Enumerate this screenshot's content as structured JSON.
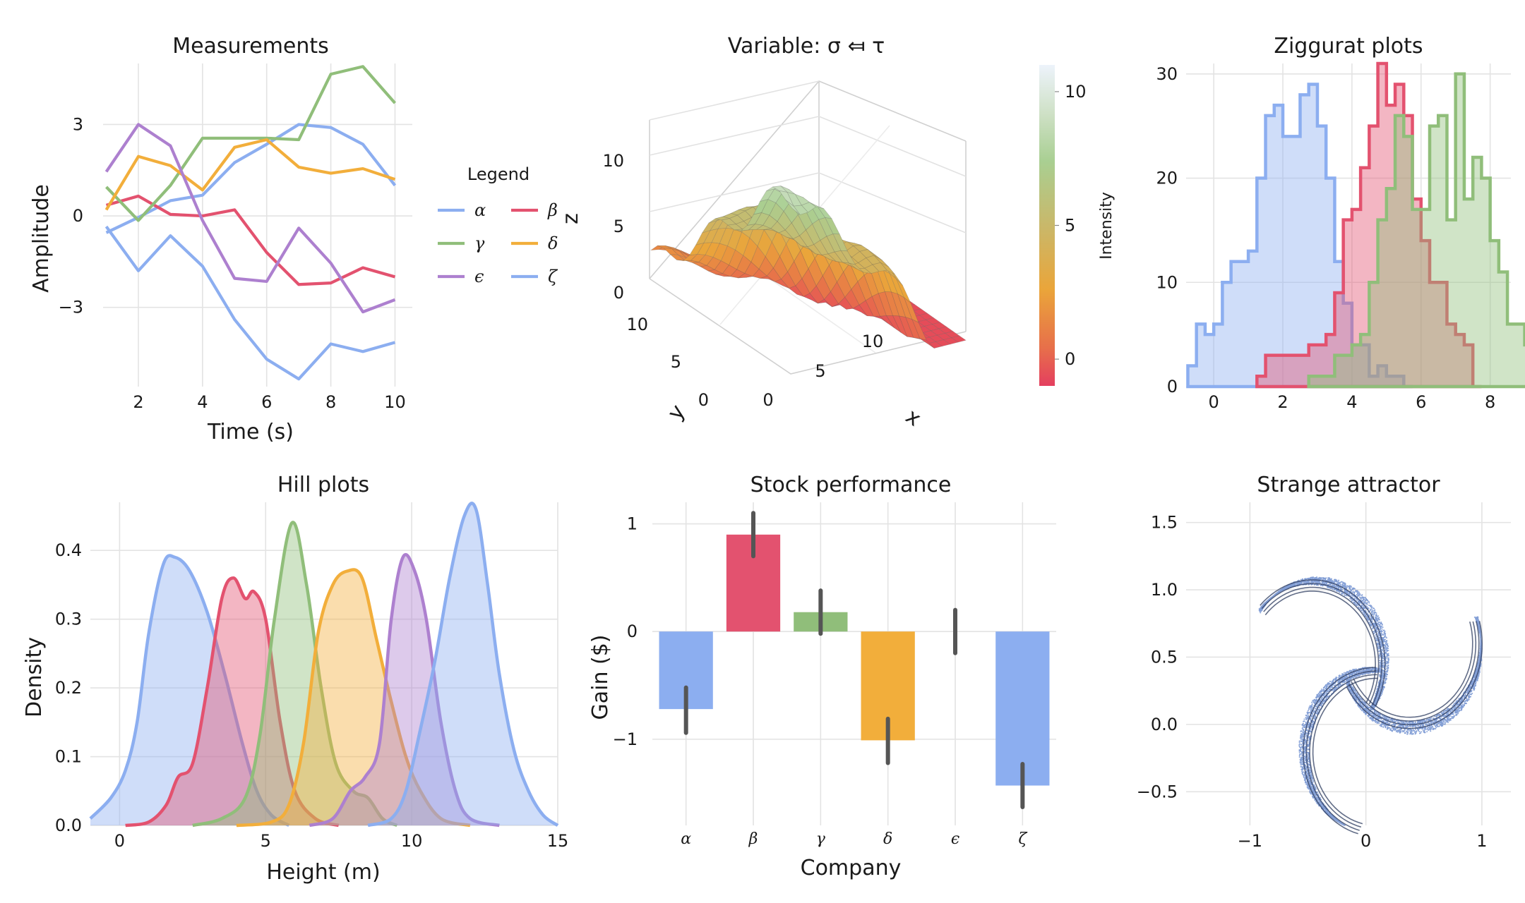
{
  "chart_data": [
    {
      "id": "measurements",
      "type": "line",
      "title": "Measurements",
      "xlabel": "Time (s)",
      "ylabel": "Amplitude",
      "xlim": [
        0.9,
        10.1
      ],
      "ylim": [
        -5.6,
        5.0
      ],
      "xticks": [
        2,
        4,
        6,
        8,
        10
      ],
      "yticks": [
        3,
        0,
        -3
      ],
      "ytick_labels": [
        "3",
        "0",
        "−3"
      ],
      "grid": true,
      "legend": {
        "title": "Legend",
        "placement": "right",
        "columns": 2
      },
      "x": [
        1,
        2,
        3,
        4,
        5,
        6,
        7,
        8,
        9,
        10
      ],
      "series": [
        {
          "name": "α",
          "color": "#8caef0",
          "values": [
            -0.55,
            -0.05,
            0.5,
            0.68,
            1.75,
            2.35,
            3.0,
            2.9,
            2.35,
            1.0
          ]
        },
        {
          "name": "β",
          "color": "#e3526f",
          "values": [
            0.35,
            0.65,
            0.05,
            0.0,
            0.2,
            -1.2,
            -2.25,
            -2.2,
            -1.7,
            -2.0
          ]
        },
        {
          "name": "γ",
          "color": "#90be7a",
          "values": [
            0.95,
            -0.15,
            1.0,
            2.55,
            2.55,
            2.55,
            2.5,
            4.65,
            4.9,
            3.7
          ]
        },
        {
          "name": "δ",
          "color": "#f2ae3b",
          "values": [
            0.2,
            1.95,
            1.65,
            0.85,
            2.25,
            2.5,
            1.6,
            1.4,
            1.55,
            1.2
          ]
        },
        {
          "name": "ϵ",
          "color": "#ad80cf",
          "values": [
            1.45,
            3.0,
            2.3,
            -0.15,
            -2.05,
            -2.15,
            -0.4,
            -1.55,
            -3.15,
            -2.75
          ]
        },
        {
          "name": "ζ",
          "color": "#8caef0",
          "values": [
            -0.35,
            -1.8,
            -0.65,
            -1.65,
            -3.4,
            -4.7,
            -5.35,
            -4.2,
            -4.45,
            -4.15
          ]
        }
      ]
    },
    {
      "id": "surface",
      "type": "surface",
      "title": "Variable: σ ⤆ τ",
      "xlabel": "x",
      "ylabel": "y",
      "zlabel": "z",
      "xlim": [
        0,
        10
      ],
      "ylim": [
        0,
        10
      ],
      "zlim": [
        -1,
        11
      ],
      "xticks": [
        0,
        5,
        10
      ],
      "yticks": [
        0,
        5,
        10
      ],
      "zticks": [
        0,
        5,
        10
      ],
      "colorbar": {
        "label": "Intensity",
        "range": [
          -1,
          11
        ],
        "ticks": [
          0,
          5,
          10
        ],
        "placement": "right"
      }
    },
    {
      "id": "ziggurat",
      "type": "histogram",
      "title": "Ziggurat plots",
      "xlim": [
        -0.8,
        8.6
      ],
      "ylim": [
        0,
        31
      ],
      "xticks": [
        0,
        2,
        4,
        6,
        8
      ],
      "yticks": [
        0,
        10,
        20,
        30
      ],
      "bin_width": 0.25,
      "grid": true,
      "series": [
        {
          "color": "#8caef0",
          "start": -0.75,
          "counts": [
            2,
            6,
            5,
            6,
            10,
            12,
            12,
            13,
            20,
            26,
            27,
            24,
            24,
            28,
            29,
            25,
            20,
            12,
            8,
            4,
            4,
            1,
            2,
            1,
            1,
            0
          ]
        },
        {
          "color": "#e3526f",
          "start": 1.25,
          "counts": [
            1,
            3,
            3,
            3,
            3,
            3,
            4,
            4,
            5,
            9,
            16,
            17,
            21,
            25,
            31,
            27,
            29,
            26,
            18,
            14,
            10,
            10,
            6,
            5,
            4,
            0
          ]
        },
        {
          "color": "#90be7a",
          "start": 2.75,
          "counts": [
            1,
            1,
            1,
            3,
            3,
            4,
            5,
            10,
            16,
            19,
            26,
            24,
            17,
            17,
            25,
            26,
            16,
            30,
            18,
            22,
            20,
            14,
            11,
            6,
            6,
            4,
            4,
            0
          ]
        }
      ]
    },
    {
      "id": "hills",
      "type": "area",
      "title": "Hill plots",
      "xlabel": "Height (m)",
      "ylabel": "Density",
      "xlim": [
        -1,
        15
      ],
      "ylim": [
        0,
        0.47
      ],
      "xticks": [
        0,
        5,
        10,
        15
      ],
      "yticks": [
        0.0,
        0.1,
        0.2,
        0.3,
        0.4
      ],
      "ytick_labels": [
        "0.0",
        "0.1",
        "0.2",
        "0.3",
        "0.4"
      ],
      "grid": true,
      "series": [
        {
          "color": "#8caef0",
          "points": [
            [
              -1,
              0.01
            ],
            [
              -0.3,
              0.04
            ],
            [
              0.2,
              0.08
            ],
            [
              0.6,
              0.15
            ],
            [
              1.0,
              0.28
            ],
            [
              1.5,
              0.38
            ],
            [
              1.9,
              0.39
            ],
            [
              2.4,
              0.37
            ],
            [
              3.0,
              0.31
            ],
            [
              3.6,
              0.22
            ],
            [
              4.2,
              0.12
            ],
            [
              4.7,
              0.05
            ],
            [
              5.2,
              0.015
            ],
            [
              5.8,
              0.0
            ]
          ]
        },
        {
          "color": "#e3526f",
          "points": [
            [
              0.2,
              0.0
            ],
            [
              1.0,
              0.005
            ],
            [
              1.6,
              0.03
            ],
            [
              2.0,
              0.07
            ],
            [
              2.5,
              0.09
            ],
            [
              3.0,
              0.2
            ],
            [
              3.5,
              0.33
            ],
            [
              3.9,
              0.36
            ],
            [
              4.3,
              0.33
            ],
            [
              4.6,
              0.34
            ],
            [
              5.0,
              0.3
            ],
            [
              5.5,
              0.15
            ],
            [
              6.0,
              0.05
            ],
            [
              6.7,
              0.01
            ],
            [
              7.5,
              0.0
            ]
          ]
        },
        {
          "color": "#90be7a",
          "points": [
            [
              2.5,
              0.0
            ],
            [
              3.5,
              0.01
            ],
            [
              4.3,
              0.04
            ],
            [
              4.8,
              0.13
            ],
            [
              5.3,
              0.3
            ],
            [
              5.9,
              0.44
            ],
            [
              6.4,
              0.35
            ],
            [
              6.9,
              0.2
            ],
            [
              7.4,
              0.09
            ],
            [
              8.0,
              0.05
            ],
            [
              8.5,
              0.04
            ],
            [
              9.0,
              0.01
            ],
            [
              9.5,
              0.0
            ]
          ]
        },
        {
          "color": "#f2ae3b",
          "points": [
            [
              4.0,
              0.0
            ],
            [
              5.2,
              0.005
            ],
            [
              5.8,
              0.03
            ],
            [
              6.3,
              0.12
            ],
            [
              6.8,
              0.28
            ],
            [
              7.3,
              0.35
            ],
            [
              7.8,
              0.37
            ],
            [
              8.3,
              0.36
            ],
            [
              8.8,
              0.27
            ],
            [
              9.3,
              0.18
            ],
            [
              9.8,
              0.1
            ],
            [
              10.3,
              0.05
            ],
            [
              11.0,
              0.01
            ],
            [
              12.0,
              0.0
            ]
          ]
        },
        {
          "color": "#ad80cf",
          "points": [
            [
              6.5,
              0.0
            ],
            [
              7.3,
              0.01
            ],
            [
              7.9,
              0.05
            ],
            [
              8.4,
              0.07
            ],
            [
              8.9,
              0.12
            ],
            [
              9.3,
              0.3
            ],
            [
              9.7,
              0.39
            ],
            [
              10.1,
              0.37
            ],
            [
              10.5,
              0.3
            ],
            [
              11.0,
              0.15
            ],
            [
              11.5,
              0.05
            ],
            [
              12.0,
              0.01
            ],
            [
              13.0,
              0.0
            ]
          ]
        },
        {
          "color": "#8caef0",
          "points": [
            [
              8.5,
              0.0
            ],
            [
              9.3,
              0.01
            ],
            [
              9.8,
              0.05
            ],
            [
              10.3,
              0.14
            ],
            [
              10.8,
              0.24
            ],
            [
              11.3,
              0.36
            ],
            [
              11.8,
              0.45
            ],
            [
              12.2,
              0.46
            ],
            [
              12.6,
              0.35
            ],
            [
              13.0,
              0.22
            ],
            [
              13.5,
              0.11
            ],
            [
              14.0,
              0.05
            ],
            [
              14.5,
              0.015
            ],
            [
              15.0,
              0.0
            ]
          ]
        }
      ]
    },
    {
      "id": "stocks",
      "type": "bar",
      "title": "Stock performance",
      "xlabel": "Company",
      "ylabel": "Gain ($)",
      "ylim": [
        -1.8,
        1.2
      ],
      "yticks": [
        1,
        0,
        -1
      ],
      "ytick_labels": [
        "1",
        "0",
        "−1"
      ],
      "grid": true,
      "categories": [
        "α",
        "β",
        "γ",
        "δ",
        "ϵ",
        "ζ"
      ],
      "values": [
        -0.72,
        0.9,
        0.18,
        -1.01,
        0.0,
        -1.43
      ],
      "errors": [
        [
          -0.94,
          -0.52
        ],
        [
          0.7,
          1.1
        ],
        [
          -0.02,
          0.38
        ],
        [
          -1.22,
          -0.81
        ],
        [
          -0.2,
          0.2
        ],
        [
          -1.63,
          -1.23
        ]
      ],
      "colors": [
        "#8caef0",
        "#e3526f",
        "#90be7a",
        "#f2ae3b",
        "#ad80cf",
        "#8caef0"
      ]
    },
    {
      "id": "attractor",
      "type": "scatter",
      "title": "Strange attractor",
      "xlim": [
        -1.55,
        1.25
      ],
      "ylim": [
        -0.75,
        1.65
      ],
      "xticks": [
        -1,
        0,
        1
      ],
      "xtick_labels": [
        "−1",
        "0",
        "1"
      ],
      "yticks": [
        1.5,
        1.0,
        0.5,
        0.0,
        -0.5
      ],
      "ytick_labels": [
        "1.5",
        "1.0",
        "0.5",
        "0.0",
        "−0.5"
      ],
      "grid": true,
      "color": "#5a7fc8"
    }
  ]
}
